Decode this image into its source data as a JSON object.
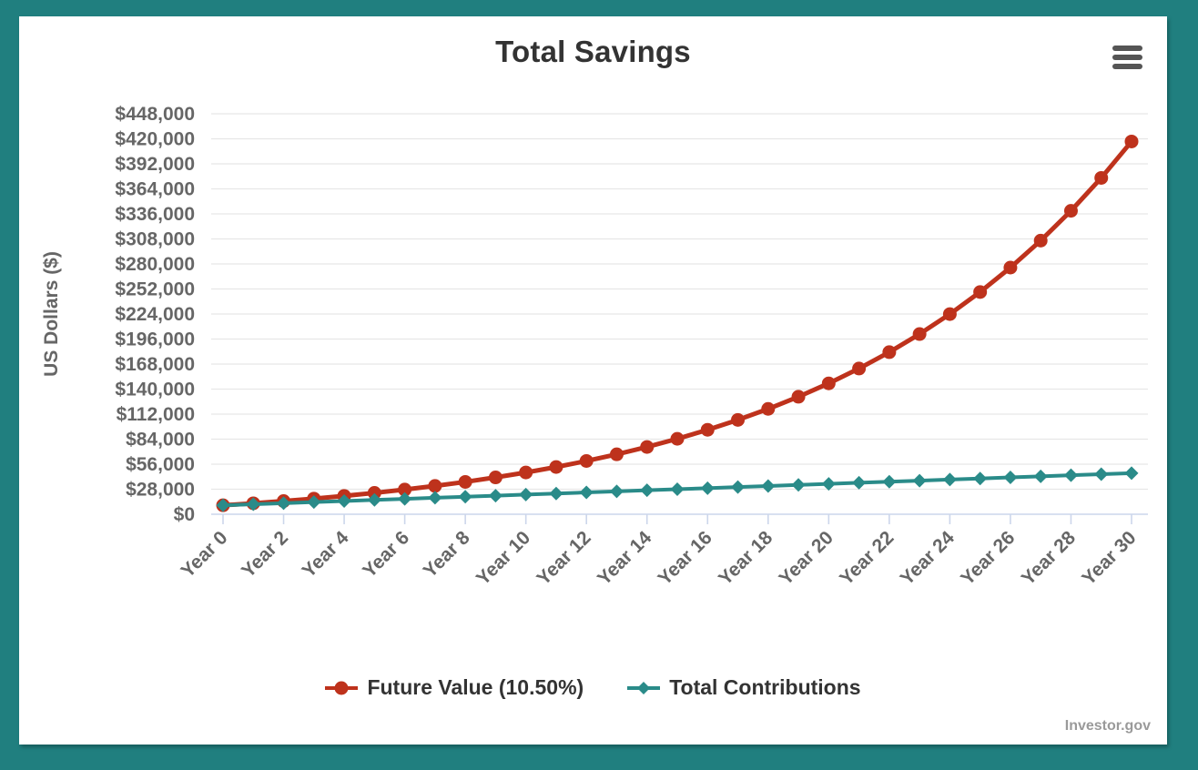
{
  "page": {
    "frame_color": "#207f7f",
    "card_color": "#ffffff"
  },
  "header": {
    "menu_icon": "hamburger-menu-icon"
  },
  "chart_data": {
    "type": "line",
    "title": "Total Savings",
    "ylabel": "US Dollars ($)",
    "xlabel": "",
    "ylim": [
      0,
      448000
    ],
    "ytick_step": 28000,
    "ytick_labels": [
      "$0",
      "$28,000",
      "$56,000",
      "$84,000",
      "$112,000",
      "$140,000",
      "$168,000",
      "$196,000",
      "$224,000",
      "$252,000",
      "$280,000",
      "$308,000",
      "$336,000",
      "$364,000",
      "$392,000",
      "$420,000",
      "$448,000"
    ],
    "x": [
      0,
      1,
      2,
      3,
      4,
      5,
      6,
      7,
      8,
      9,
      10,
      11,
      12,
      13,
      14,
      15,
      16,
      17,
      18,
      19,
      20,
      21,
      22,
      23,
      24,
      25,
      26,
      27,
      28,
      29,
      30
    ],
    "x_tick_interval": 2,
    "x_tick_labels": [
      "Year 0",
      "Year 2",
      "Year 4",
      "Year 6",
      "Year 8",
      "Year 10",
      "Year 12",
      "Year 14",
      "Year 16",
      "Year 18",
      "Year 20",
      "Year 22",
      "Year 24",
      "Year 26",
      "Year 28",
      "Year 30"
    ],
    "grid": true,
    "legend_position": "bottom",
    "series": [
      {
        "name": "Future Value (10.50%)",
        "color": "#be321c",
        "marker": "circle",
        "values": [
          10000,
          12250,
          14736,
          17484,
          20519,
          23874,
          27581,
          31677,
          36203,
          41204,
          46730,
          52837,
          59585,
          67041,
          75281,
          84385,
          94446,
          105562,
          117846,
          131420,
          146419,
          162993,
          181308,
          201545,
          223907,
          248617,
          275922,
          306094,
          339434,
          376275,
          416983
        ]
      },
      {
        "name": "Total Contributions",
        "color": "#2a8b89",
        "marker": "diamond",
        "values": [
          10000,
          11200,
          12400,
          13600,
          14800,
          16000,
          17200,
          18400,
          19600,
          20800,
          22000,
          23200,
          24400,
          25600,
          26800,
          28000,
          29200,
          30400,
          31600,
          32800,
          34000,
          35200,
          36400,
          37600,
          38800,
          40000,
          41200,
          42400,
          43600,
          44800,
          46000
        ]
      }
    ],
    "credit": "Investor.gov"
  },
  "colors": {
    "gridline": "#e7e7e7",
    "axis_line": "#ccd6eb",
    "axis_label": "#666666",
    "title_text": "#333333",
    "legend_text": "#333333",
    "credit_text": "#9a9a9a",
    "menu_icon": "#555555"
  }
}
